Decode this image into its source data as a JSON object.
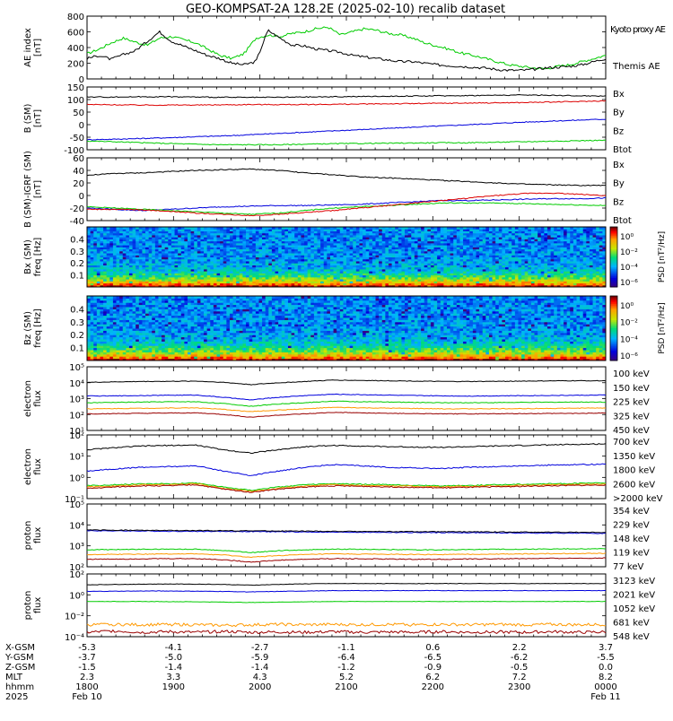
{
  "title": "GEO-KOMPSAT-2A 128.2E (2025-02-10) recalib dataset",
  "colors": {
    "black": "#000000",
    "blue": "#0000dd",
    "green": "#00cc00",
    "red": "#dd0000",
    "orange": "#ff9900",
    "darkred": "#990000"
  },
  "chart_data": [
    {
      "type": "line",
      "id": "ae",
      "ylabel": [
        "AE index",
        "[nT]"
      ],
      "ylim": [
        0,
        800
      ],
      "yticks": [
        "800",
        "600",
        "400",
        "200",
        "0"
      ],
      "series": [
        {
          "name": "Kyoto proxy AE",
          "color": "green",
          "values": [
            320,
            380,
            460,
            520,
            470,
            430,
            520,
            540,
            500,
            460,
            380,
            300,
            260,
            320,
            520,
            560,
            540,
            580,
            600,
            640,
            660,
            560,
            600,
            640,
            620,
            580,
            560,
            520,
            460,
            420,
            380,
            330,
            300,
            260,
            220,
            180,
            160,
            140,
            130,
            160,
            180,
            220,
            260,
            300
          ]
        },
        {
          "name": "Themis AE",
          "color": "black",
          "values": [
            260,
            300,
            250,
            310,
            360,
            480,
            600,
            480,
            420,
            360,
            300,
            260,
            200,
            180,
            220,
            620,
            520,
            430,
            420,
            380,
            360,
            340,
            300,
            280,
            260,
            240,
            220,
            220,
            200,
            180,
            170,
            160,
            150,
            140,
            120,
            110,
            110,
            120,
            140,
            150,
            160,
            180,
            220,
            260
          ]
        }
      ]
    },
    {
      "type": "line",
      "id": "bsm",
      "ylabel": [
        "B (SM)",
        "[nT]"
      ],
      "ylim": [
        -100,
        150
      ],
      "yticks": [
        "150",
        "100",
        "50",
        "0",
        "-50",
        "-100"
      ],
      "series": [
        {
          "name": "Bx",
          "color": "blue",
          "values": [
            -60,
            -58,
            -55,
            -52,
            -48,
            -45,
            -40,
            -35,
            -30,
            -25,
            -20,
            -15,
            -10,
            -5,
            0,
            5,
            10,
            14,
            18,
            22
          ]
        },
        {
          "name": "By",
          "color": "green",
          "values": [
            -65,
            -68,
            -72,
            -75,
            -78,
            -80,
            -80,
            -80,
            -78,
            -76,
            -75,
            -74,
            -73,
            -72,
            -72,
            -70,
            -68,
            -66,
            -64,
            -62
          ]
        },
        {
          "name": "Bz",
          "color": "red",
          "values": [
            80,
            79,
            78,
            78,
            78,
            79,
            80,
            80,
            80,
            81,
            82,
            83,
            84,
            85,
            86,
            87,
            88,
            90,
            92,
            95
          ]
        },
        {
          "name": "Btot",
          "color": "black",
          "values": [
            110,
            110,
            111,
            111,
            110,
            109,
            108,
            109,
            110,
            111,
            112,
            113,
            114,
            115,
            116,
            117,
            118,
            117,
            115,
            114
          ]
        }
      ]
    },
    {
      "type": "line",
      "id": "bsmigrf",
      "ylabel": [
        "B (SM)-IGRF (SM)",
        "[nT]"
      ],
      "ylim": [
        -40,
        60
      ],
      "yticks": [
        "60",
        "40",
        "20",
        "0",
        "-20",
        "-40"
      ],
      "series": [
        {
          "name": "Bx",
          "color": "blue",
          "values": [
            -20,
            -22,
            -24,
            -22,
            -20,
            -18,
            -17,
            -16,
            -16,
            -15,
            -14,
            -12,
            -10,
            -8,
            -8,
            -7,
            -6,
            -5,
            -5,
            -4
          ]
        },
        {
          "name": "By",
          "color": "green",
          "values": [
            -18,
            -20,
            -22,
            -24,
            -26,
            -28,
            -30,
            -28,
            -24,
            -20,
            -18,
            -16,
            -14,
            -12,
            -12,
            -12,
            -13,
            -14,
            -15,
            -16
          ]
        },
        {
          "name": "Bz",
          "color": "red",
          "values": [
            -22,
            -22,
            -23,
            -25,
            -28,
            -30,
            -32,
            -30,
            -27,
            -24,
            -20,
            -16,
            -12,
            -8,
            -4,
            0,
            3,
            4,
            2,
            0
          ]
        },
        {
          "name": "Btot",
          "color": "black",
          "values": [
            32,
            35,
            36,
            38,
            40,
            41,
            42,
            40,
            36,
            33,
            30,
            28,
            26,
            24,
            22,
            20,
            18,
            17,
            16,
            16
          ]
        }
      ]
    },
    {
      "type": "heatmap",
      "id": "bxspec",
      "ylabel": [
        "Bx (SM)",
        "freq [Hz]"
      ],
      "ylim": [
        0,
        0.5
      ],
      "yticks": [
        "0.4",
        "0.3",
        "0.2",
        "0.1"
      ],
      "cbar_label": "PSD [nT²/Hz]",
      "cbar_ticks": [
        "10⁰",
        "10⁻²",
        "10⁻⁴",
        "10⁻⁶"
      ]
    },
    {
      "type": "heatmap",
      "id": "bzspec",
      "ylabel": [
        "Bz (SM)",
        "freq [Hz]"
      ],
      "ylim": [
        0,
        0.5
      ],
      "yticks": [
        "0.4",
        "0.3",
        "0.2",
        "0.1"
      ],
      "cbar_label": "PSD [nT²/Hz]",
      "cbar_ticks": [
        "10⁰",
        "10⁻²",
        "10⁻⁴",
        "10⁻⁶"
      ]
    },
    {
      "type": "line",
      "id": "elow",
      "scale": "log",
      "ylabel": [
        "electron",
        "flux"
      ],
      "ylim": [
        10,
        1000000
      ],
      "yticks": [
        "10⁵",
        "10⁴",
        "10³",
        "10²",
        "10¹"
      ],
      "series": [
        {
          "name": "100 keV",
          "color": "black",
          "values": [
            60000,
            65000,
            70000,
            72000,
            75000,
            60000,
            40000,
            55000,
            70000,
            90000,
            85000,
            80000,
            75000,
            70000,
            70000,
            72000,
            75000,
            78000,
            80000,
            80000
          ]
        },
        {
          "name": "150 keV",
          "color": "blue",
          "values": [
            5000,
            5200,
            5500,
            5800,
            6000,
            4000,
            2500,
            4000,
            5500,
            7000,
            6500,
            6000,
            5500,
            5200,
            5000,
            5200,
            5400,
            5600,
            5800,
            6000
          ]
        },
        {
          "name": "225 keV",
          "color": "green",
          "values": [
            1500,
            1600,
            1700,
            1800,
            1800,
            1300,
            800,
            1200,
            1500,
            2000,
            1800,
            1700,
            1600,
            1500,
            1500,
            1550,
            1600,
            1650,
            1700,
            1700
          ]
        },
        {
          "name": "325 keV",
          "color": "orange",
          "values": [
            500,
            520,
            550,
            580,
            600,
            450,
            300,
            400,
            500,
            650,
            600,
            560,
            530,
            500,
            500,
            510,
            520,
            540,
            560,
            580
          ]
        },
        {
          "name": "450 keV",
          "color": "darkred",
          "values": [
            200,
            210,
            220,
            230,
            240,
            180,
            110,
            160,
            200,
            260,
            240,
            220,
            210,
            200,
            200,
            205,
            210,
            215,
            220,
            230
          ]
        }
      ]
    },
    {
      "type": "line",
      "id": "ehigh",
      "scale": "log",
      "ylabel": [
        "electron",
        "flux"
      ],
      "ylim": [
        0.1,
        100
      ],
      "yticks": [
        "10²",
        "10¹",
        "10⁰",
        "10⁻¹"
      ],
      "series": [
        {
          "name": "700 keV",
          "color": "black",
          "values": [
            20,
            25,
            30,
            32,
            33,
            20,
            14,
            20,
            28,
            32,
            30,
            28,
            27,
            26,
            28,
            30,
            32,
            34,
            36,
            38
          ]
        },
        {
          "name": "1350 keV",
          "color": "blue",
          "values": [
            2,
            2.5,
            3,
            3.2,
            3.5,
            2,
            1.2,
            2,
            3,
            4,
            3.5,
            3,
            2.8,
            2.6,
            3,
            3.2,
            3.5,
            3.8,
            4,
            4.2
          ]
        },
        {
          "name": "1800 keV",
          "color": "green",
          "values": [
            0.4,
            0.45,
            0.5,
            0.5,
            0.55,
            0.35,
            0.25,
            0.35,
            0.45,
            0.5,
            0.48,
            0.45,
            0.42,
            0.4,
            0.42,
            0.45,
            0.48,
            0.5,
            0.52,
            0.55
          ]
        },
        {
          "name": "2600 keV",
          "color": "orange",
          "values": [
            0.35,
            0.4,
            0.45,
            0.45,
            0.5,
            0.3,
            0.22,
            0.3,
            0.4,
            0.45,
            0.42,
            0.4,
            0.38,
            0.36,
            0.38,
            0.4,
            0.42,
            0.45,
            0.46,
            0.48
          ]
        },
        {
          "name": ">2000 keV",
          "color": "darkred",
          "values": [
            0.3,
            0.35,
            0.4,
            0.4,
            0.45,
            0.28,
            0.2,
            0.28,
            0.35,
            0.4,
            0.38,
            0.36,
            0.34,
            0.32,
            0.34,
            0.36,
            0.38,
            0.4,
            0.42,
            0.44
          ]
        }
      ]
    },
    {
      "type": "line",
      "id": "plow",
      "scale": "log",
      "ylabel": [
        "proton",
        "flux"
      ],
      "ylim": [
        100,
        1000000
      ],
      "yticks": [
        "10⁵",
        "10⁴",
        "10³",
        "10²"
      ],
      "series": [
        {
          "name": "354 keV",
          "color": "darkred",
          "values": [
            300,
            310,
            320,
            330,
            330,
            280,
            200,
            260,
            300,
            330,
            320,
            310,
            300,
            300,
            310,
            320,
            330,
            340,
            350,
            360
          ]
        },
        {
          "name": "229 keV",
          "color": "orange",
          "values": [
            600,
            620,
            640,
            660,
            660,
            560,
            400,
            520,
            600,
            660,
            640,
            620,
            600,
            600,
            620,
            640,
            660,
            680,
            700,
            720
          ]
        },
        {
          "name": "148 keV",
          "color": "green",
          "values": [
            1200,
            1250,
            1300,
            1320,
            1330,
            1100,
            800,
            1050,
            1200,
            1320,
            1300,
            1250,
            1200,
            1200,
            1250,
            1300,
            1320,
            1350,
            1380,
            1400
          ]
        },
        {
          "name": "119 keV",
          "color": "blue",
          "values": [
            20000,
            19500,
            19000,
            18500,
            18000,
            18000,
            17500,
            17000,
            16500,
            16000,
            15800,
            15500,
            15200,
            15000,
            14800,
            14500,
            14200,
            14000,
            13800,
            13500
          ]
        },
        {
          "name": "77 keV",
          "color": "black",
          "values": [
            22000,
            21500,
            21000,
            20500,
            20000,
            20000,
            19500,
            19000,
            18500,
            18000,
            17800,
            17500,
            17200,
            17000,
            16800,
            16500,
            16200,
            16000,
            15800,
            15500
          ]
        }
      ]
    },
    {
      "type": "line",
      "id": "phigh",
      "scale": "log",
      "ylabel": [
        "proton",
        "flux"
      ],
      "ylim": [
        3e-05,
        1000
      ],
      "yticks": [
        "10²",
        "10⁰",
        "10⁻²",
        "10⁻⁴"
      ],
      "series": [
        {
          "name": "3123 keV",
          "color": "darkred",
          "values": [
            0.0001,
            0.00015,
            0.0001,
            0.00012,
            0.0001,
            0.00013,
            0.0001,
            0.00011,
            0.0001,
            0.00012,
            0.0001,
            0.00011,
            0.0001,
            0.00012,
            0.0001,
            0.00011,
            0.0001,
            0.00012,
            0.0001,
            0.00011
          ]
        },
        {
          "name": "2021 keV",
          "color": "orange",
          "values": [
            0.0008,
            0.0009,
            0.0008,
            0.0009,
            0.0008,
            0.0007,
            0.0008,
            0.0009,
            0.0008,
            0.0009,
            0.0008,
            0.0009,
            0.0008,
            0.0009,
            0.0008,
            0.0009,
            0.0008,
            0.0009,
            0.0008,
            0.0009
          ]
        },
        {
          "name": "1052 keV",
          "color": "green",
          "values": [
            0.5,
            0.5,
            0.5,
            0.48,
            0.46,
            0.42,
            0.38,
            0.42,
            0.46,
            0.5,
            0.5,
            0.5,
            0.5,
            0.5,
            0.5,
            0.5,
            0.5,
            0.5,
            0.5,
            0.5
          ]
        },
        {
          "name": "681 keV",
          "color": "blue",
          "values": [
            8,
            8.5,
            9,
            9,
            8.5,
            8,
            7,
            8,
            9,
            10,
            10,
            10,
            10,
            10,
            10,
            10,
            10,
            10,
            10,
            10
          ]
        },
        {
          "name": "548 keV",
          "color": "black",
          "values": [
            50,
            55,
            60,
            62,
            60,
            55,
            45,
            55,
            65,
            70,
            70,
            70,
            70,
            70,
            70,
            70,
            70,
            70,
            70,
            70
          ]
        }
      ]
    }
  ],
  "axis_table": {
    "rows": [
      {
        "label": "X-GSM",
        "values": [
          "-5.3",
          "-4.1",
          "-2.7",
          "-1.1",
          "0.6",
          "2.2",
          "3.7"
        ]
      },
      {
        "label": "Y-GSM",
        "values": [
          "-3.7",
          "-5.0",
          "-5.9",
          "-6.4",
          "-6.5",
          "-6.2",
          "-5.5"
        ]
      },
      {
        "label": "Z-GSM",
        "values": [
          "-1.5",
          "-1.4",
          "-1.4",
          "-1.2",
          "-0.9",
          "-0.5",
          "0.0"
        ]
      },
      {
        "label": "MLT",
        "values": [
          "2.3",
          "3.3",
          "4.3",
          "5.2",
          "6.2",
          "7.2",
          "8.2"
        ]
      },
      {
        "label": "hhmm",
        "values": [
          "1800",
          "1900",
          "2000",
          "2100",
          "2200",
          "2300",
          "0000"
        ]
      },
      {
        "label": "2025",
        "values": [
          "Feb 10",
          "",
          "",
          "",
          "",
          "",
          "Feb 11"
        ]
      }
    ]
  }
}
